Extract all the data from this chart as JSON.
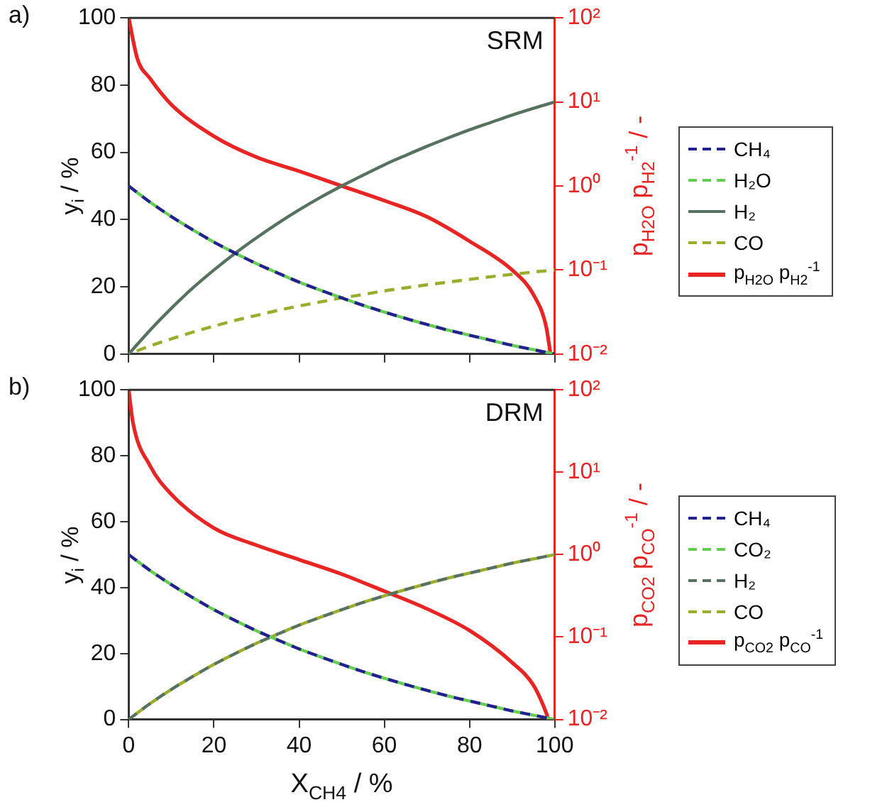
{
  "chart_data": [
    {
      "type": "line",
      "title": "SRM",
      "annotations": [
        "a)"
      ],
      "ylabel": "y$_{i}$ / %",
      "y2label": "p$_{H2O}$ p$_{H2}$$^{-1}$ / -",
      "x": [
        0,
        5,
        10,
        15,
        20,
        25,
        30,
        35,
        40,
        45,
        50,
        55,
        60,
        65,
        70,
        75,
        80,
        85,
        90,
        95,
        100
      ],
      "xlim": [
        0,
        100
      ],
      "xticks": [
        0,
        20,
        40,
        60,
        80,
        100
      ],
      "ylim": [
        0,
        100
      ],
      "yticks": [
        0,
        20,
        40,
        60,
        80,
        100
      ],
      "y2lim": [
        0.01,
        100
      ],
      "y2ticks": [
        {
          "value": 0.01,
          "label": "10⁻²"
        },
        {
          "value": 0.1,
          "label": "10⁻¹"
        },
        {
          "value": 1,
          "label": "10⁰"
        },
        {
          "value": 10,
          "label": "10¹"
        },
        {
          "value": 100,
          "label": "10²"
        }
      ],
      "log": "y2",
      "tick_labels": "y",
      "legend": "right",
      "marker": "none",
      "series": [
        {
          "name": "CH₄",
          "color": "#22228a",
          "line_style": "dashed",
          "values": [
            50,
            45.2,
            40.9,
            37,
            33.3,
            30,
            26.9,
            24.1,
            21.4,
            19,
            16.7,
            14.5,
            12.5,
            10.6,
            8.8,
            7.1,
            5.6,
            4.1,
            2.6,
            1.3,
            0
          ]
        },
        {
          "name": "H₂O",
          "color": "#66cc55",
          "line_style": "dashed",
          "values": [
            50,
            45.2,
            40.9,
            37,
            33.3,
            30,
            26.9,
            24.1,
            21.4,
            19,
            16.7,
            14.5,
            12.5,
            10.6,
            8.8,
            7.1,
            5.6,
            4.1,
            2.6,
            1.3,
            0
          ]
        },
        {
          "name": "H₂",
          "color": "#587262",
          "line_style": "solid",
          "values": [
            0,
            7.1,
            13.6,
            19.6,
            25,
            30,
            34.6,
            38.9,
            42.9,
            46.6,
            50,
            53.2,
            56.3,
            59.1,
            61.8,
            64.3,
            66.7,
            68.9,
            71.1,
            73.1,
            75
          ]
        },
        {
          "name": "CO",
          "color": "#9aad2e",
          "line_style": "dashed",
          "values": [
            0,
            2.4,
            4.5,
            6.5,
            8.3,
            10,
            11.5,
            13,
            14.3,
            15.5,
            16.7,
            17.7,
            18.8,
            19.7,
            20.6,
            21.4,
            22.2,
            23,
            23.7,
            24.4,
            25
          ]
        },
        {
          "name": "p$_{H2O}$ p$_{H2}$$^{-1}$",
          "color": "#e82525",
          "line_style": "solid",
          "axis": "y2",
          "x": [
            0,
            2,
            5,
            10,
            20,
            30,
            40,
            50,
            60,
            70,
            80,
            90,
            95,
            98,
            99
          ],
          "values": [
            100,
            33,
            19,
            9.3,
            3.9,
            2.2,
            1.5,
            1.0,
            0.67,
            0.43,
            0.22,
            0.1,
            0.051,
            0.021,
            0.01
          ]
        }
      ]
    },
    {
      "type": "line",
      "title": "DRM",
      "annotations": [
        "b)"
      ],
      "xlabel": "X$_{CH4}$ / %",
      "ylabel": "y$_{i}$ / %",
      "y2label": "p$_{CO2}$ p$_{CO}$$^{-1}$ / -",
      "x": [
        0,
        5,
        10,
        15,
        20,
        25,
        30,
        35,
        40,
        45,
        50,
        55,
        60,
        65,
        70,
        75,
        80,
        85,
        90,
        95,
        100
      ],
      "xlim": [
        0,
        100
      ],
      "xticks": [
        0,
        20,
        40,
        60,
        80,
        100
      ],
      "ylim": [
        0,
        100
      ],
      "yticks": [
        0,
        20,
        40,
        60,
        80,
        100
      ],
      "y2lim": [
        0.01,
        100
      ],
      "y2ticks": [
        {
          "value": 0.01,
          "label": "10⁻²"
        },
        {
          "value": 0.1,
          "label": "10⁻¹"
        },
        {
          "value": 1,
          "label": "10⁰"
        },
        {
          "value": 10,
          "label": "10¹"
        },
        {
          "value": 100,
          "label": "10²"
        }
      ],
      "log": "y2",
      "legend": "right",
      "marker": "none",
      "series": [
        {
          "name": "CH₄",
          "color": "#22228a",
          "line_style": "dashed",
          "values": [
            50,
            45.2,
            40.9,
            37,
            33.3,
            30,
            26.9,
            24.1,
            21.4,
            19,
            16.7,
            14.5,
            12.5,
            10.6,
            8.8,
            7.1,
            5.6,
            4.1,
            2.6,
            1.3,
            0
          ]
        },
        {
          "name": "CO₂",
          "color": "#66cc55",
          "line_style": "dashed",
          "values": [
            50,
            45.2,
            40.9,
            37,
            33.3,
            30,
            26.9,
            24.1,
            21.4,
            19,
            16.7,
            14.5,
            12.5,
            10.6,
            8.8,
            7.1,
            5.6,
            4.1,
            2.6,
            1.3,
            0
          ]
        },
        {
          "name": "H₂",
          "color": "#587262",
          "line_style": "dashed",
          "values": [
            0,
            4.8,
            9.1,
            13,
            16.7,
            20,
            23.1,
            25.9,
            28.6,
            31,
            33.3,
            35.5,
            37.5,
            39.4,
            41.2,
            42.9,
            44.4,
            45.9,
            47.4,
            48.7,
            50
          ]
        },
        {
          "name": "CO",
          "color": "#9aad2e",
          "line_style": "dashed",
          "values": [
            0,
            4.8,
            9.1,
            13,
            16.7,
            20,
            23.1,
            25.9,
            28.6,
            31,
            33.3,
            35.5,
            37.5,
            39.4,
            41.2,
            42.9,
            44.4,
            45.9,
            47.4,
            48.7,
            50
          ]
        },
        {
          "name": "p$_{CO2}$ p$_{CO}$$^{-1}$",
          "color": "#e82525",
          "line_style": "solid",
          "axis": "y2",
          "x": [
            0,
            1,
            5,
            10,
            20,
            30,
            40,
            50,
            60,
            70,
            80,
            90,
            95,
            98,
            98.5
          ],
          "values": [
            100,
            40,
            12,
            5.4,
            2.1,
            1.3,
            0.87,
            0.58,
            0.36,
            0.22,
            0.12,
            0.049,
            0.026,
            0.012,
            0.01
          ]
        }
      ]
    }
  ]
}
